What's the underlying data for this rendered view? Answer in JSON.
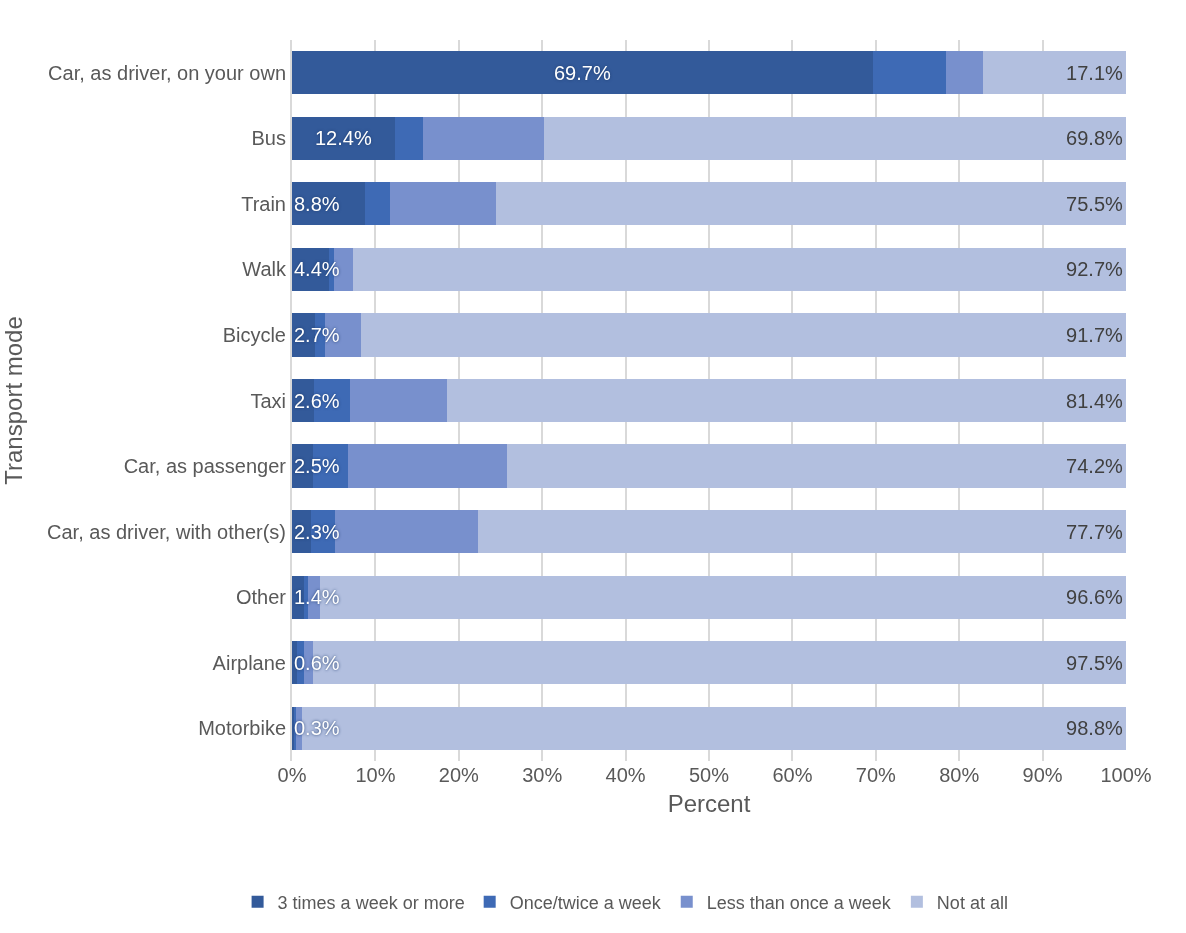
{
  "chart_data": {
    "type": "bar",
    "orientation": "horizontal",
    "stacked": true,
    "xlabel": "Percent",
    "ylabel": "Transport mode",
    "categories": [
      "Car, as driver, on your own",
      "Bus",
      "Train",
      "Walk",
      "Bicycle",
      "Taxi",
      "Car, as passenger",
      "Car, as driver, with other(s)",
      "Other",
      "Airplane",
      "Motorbike"
    ],
    "series": [
      {
        "name": "3 times a week or more",
        "color": "#335a9a",
        "values": [
          69.7,
          12.4,
          8.8,
          4.4,
          2.7,
          2.6,
          2.5,
          2.3,
          1.4,
          0.6,
          0.3
        ],
        "value_labels": [
          "69.7%",
          "12.4%",
          "8.8%",
          "4.4%",
          "2.7%",
          "2.6%",
          "2.5%",
          "2.3%",
          "1.4%",
          "0.6%",
          "0.3%"
        ]
      },
      {
        "name": "Once/twice a week",
        "color": "#3e6ab5",
        "values": [
          8.7,
          3.3,
          3.0,
          0.6,
          1.3,
          4.3,
          4.2,
          2.8,
          0.5,
          0.8,
          0.2
        ]
      },
      {
        "name": "Less than once a week",
        "color": "#7890cd",
        "values": [
          4.5,
          14.5,
          12.7,
          2.3,
          4.3,
          11.7,
          19.1,
          17.2,
          1.5,
          1.1,
          0.7
        ]
      },
      {
        "name": "Not at all",
        "color": "#b2bfdf",
        "values": [
          17.1,
          69.8,
          75.5,
          92.7,
          91.7,
          81.4,
          74.2,
          77.7,
          96.6,
          97.5,
          98.8
        ],
        "value_labels": [
          "17.1%",
          "69.8%",
          "75.5%",
          "92.7%",
          "91.7%",
          "81.4%",
          "74.2%",
          "77.7%",
          "96.6%",
          "97.5%",
          "98.8%"
        ]
      }
    ],
    "xlim": [
      0,
      100
    ],
    "xticks": [
      {
        "value": 0,
        "label": "0%"
      },
      {
        "value": 10,
        "label": "10%"
      },
      {
        "value": 20,
        "label": "20%"
      },
      {
        "value": 30,
        "label": "30%"
      },
      {
        "value": 40,
        "label": "40%"
      },
      {
        "value": 50,
        "label": "50%"
      },
      {
        "value": 60,
        "label": "60%"
      },
      {
        "value": 70,
        "label": "70%"
      },
      {
        "value": 80,
        "label": "80%"
      },
      {
        "value": 90,
        "label": "90%"
      },
      {
        "value": 100,
        "label": "100%"
      }
    ],
    "grid": "x",
    "legend": "bottom"
  }
}
